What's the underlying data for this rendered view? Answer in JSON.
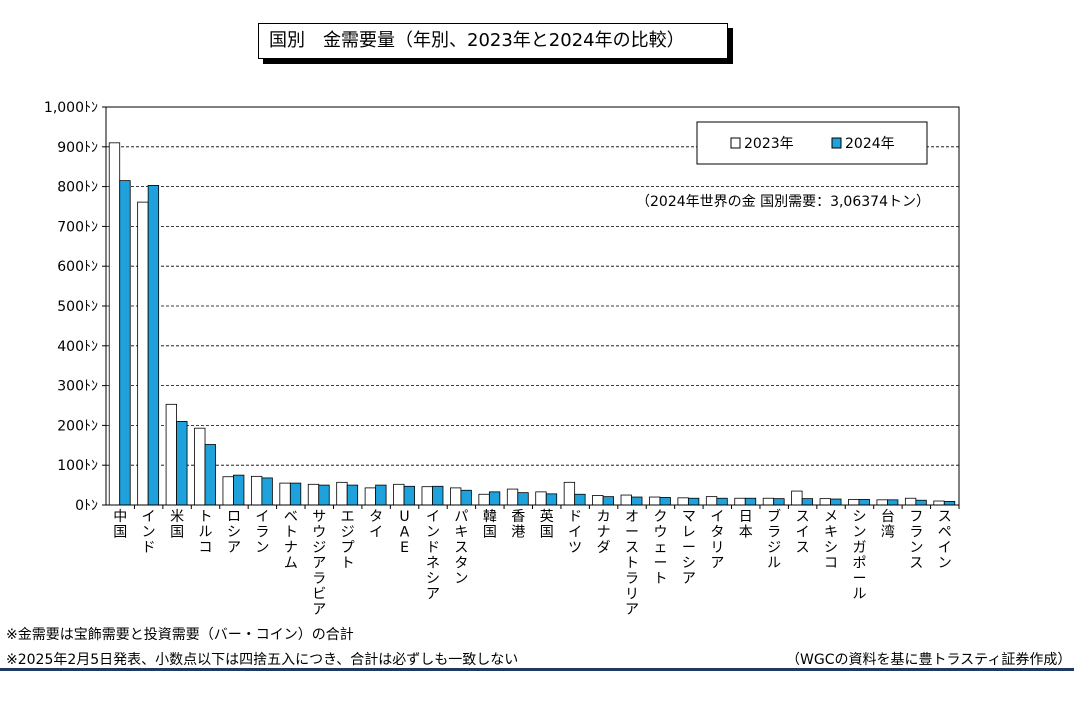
{
  "title": "国別　金需要量（年別、2023年と2024年の比較）",
  "chart_data": {
    "type": "bar",
    "title": "国別　金需要量（年別、2023年と2024年の比較）",
    "y_unit": "ﾄﾝ",
    "ylim": [
      0,
      1000
    ],
    "y_ticks": [
      "0ﾄﾝ",
      "100ﾄﾝ",
      "200ﾄﾝ",
      "300ﾄﾝ",
      "400ﾄﾝ",
      "500ﾄﾝ",
      "600ﾄﾝ",
      "700ﾄﾝ",
      "800ﾄﾝ",
      "900ﾄﾝ",
      "1,000ﾄﾝ"
    ],
    "grid": true,
    "legend_position": "top-right",
    "categories": [
      "中国",
      "インド",
      "米国",
      "トルコ",
      "ロシア",
      "イラン",
      "ベトナム",
      "サウジアラビア",
      "エジプト",
      "タイ",
      "UAE",
      "インドネシア",
      "パキスタン",
      "韓国",
      "香港",
      "英国",
      "ドイツ",
      "カナダ",
      "オーストラリア",
      "クウェート",
      "マレーシア",
      "イタリア",
      "日本",
      "ブラジル",
      "スイス",
      "メキシコ",
      "シンガポール",
      "台湾",
      "フランス",
      "スペイン"
    ],
    "series": [
      {
        "name": "2023年",
        "color": "#ffffff",
        "values": [
          910,
          761,
          253,
          193,
          71,
          72,
          55,
          52,
          57,
          43,
          52,
          46,
          43,
          27,
          40,
          33,
          57,
          24,
          25,
          20,
          18,
          21,
          17,
          17,
          35,
          16,
          14,
          13,
          17,
          10
        ]
      },
      {
        "name": "2024年",
        "color": "#1fa2dc",
        "values": [
          815,
          803,
          210,
          152,
          75,
          68,
          55,
          50,
          50,
          50,
          47,
          47,
          37,
          33,
          31,
          28,
          27,
          21,
          20,
          19,
          17,
          17,
          17,
          16,
          16,
          15,
          14,
          13,
          12,
          9
        ]
      }
    ],
    "annotation": "（2024年世界の金  国別需要：3,06374トン）"
  },
  "notes": {
    "note1": "※金需要は宝飾需要と投資需要（バー・コイン）の合計",
    "note2": "※2025年2月5日発表、小数点以下は四捨五入につき、合計は必ずしも一致しない",
    "source": "（WGCの資料を基に豊トラスティ証券作成）"
  }
}
